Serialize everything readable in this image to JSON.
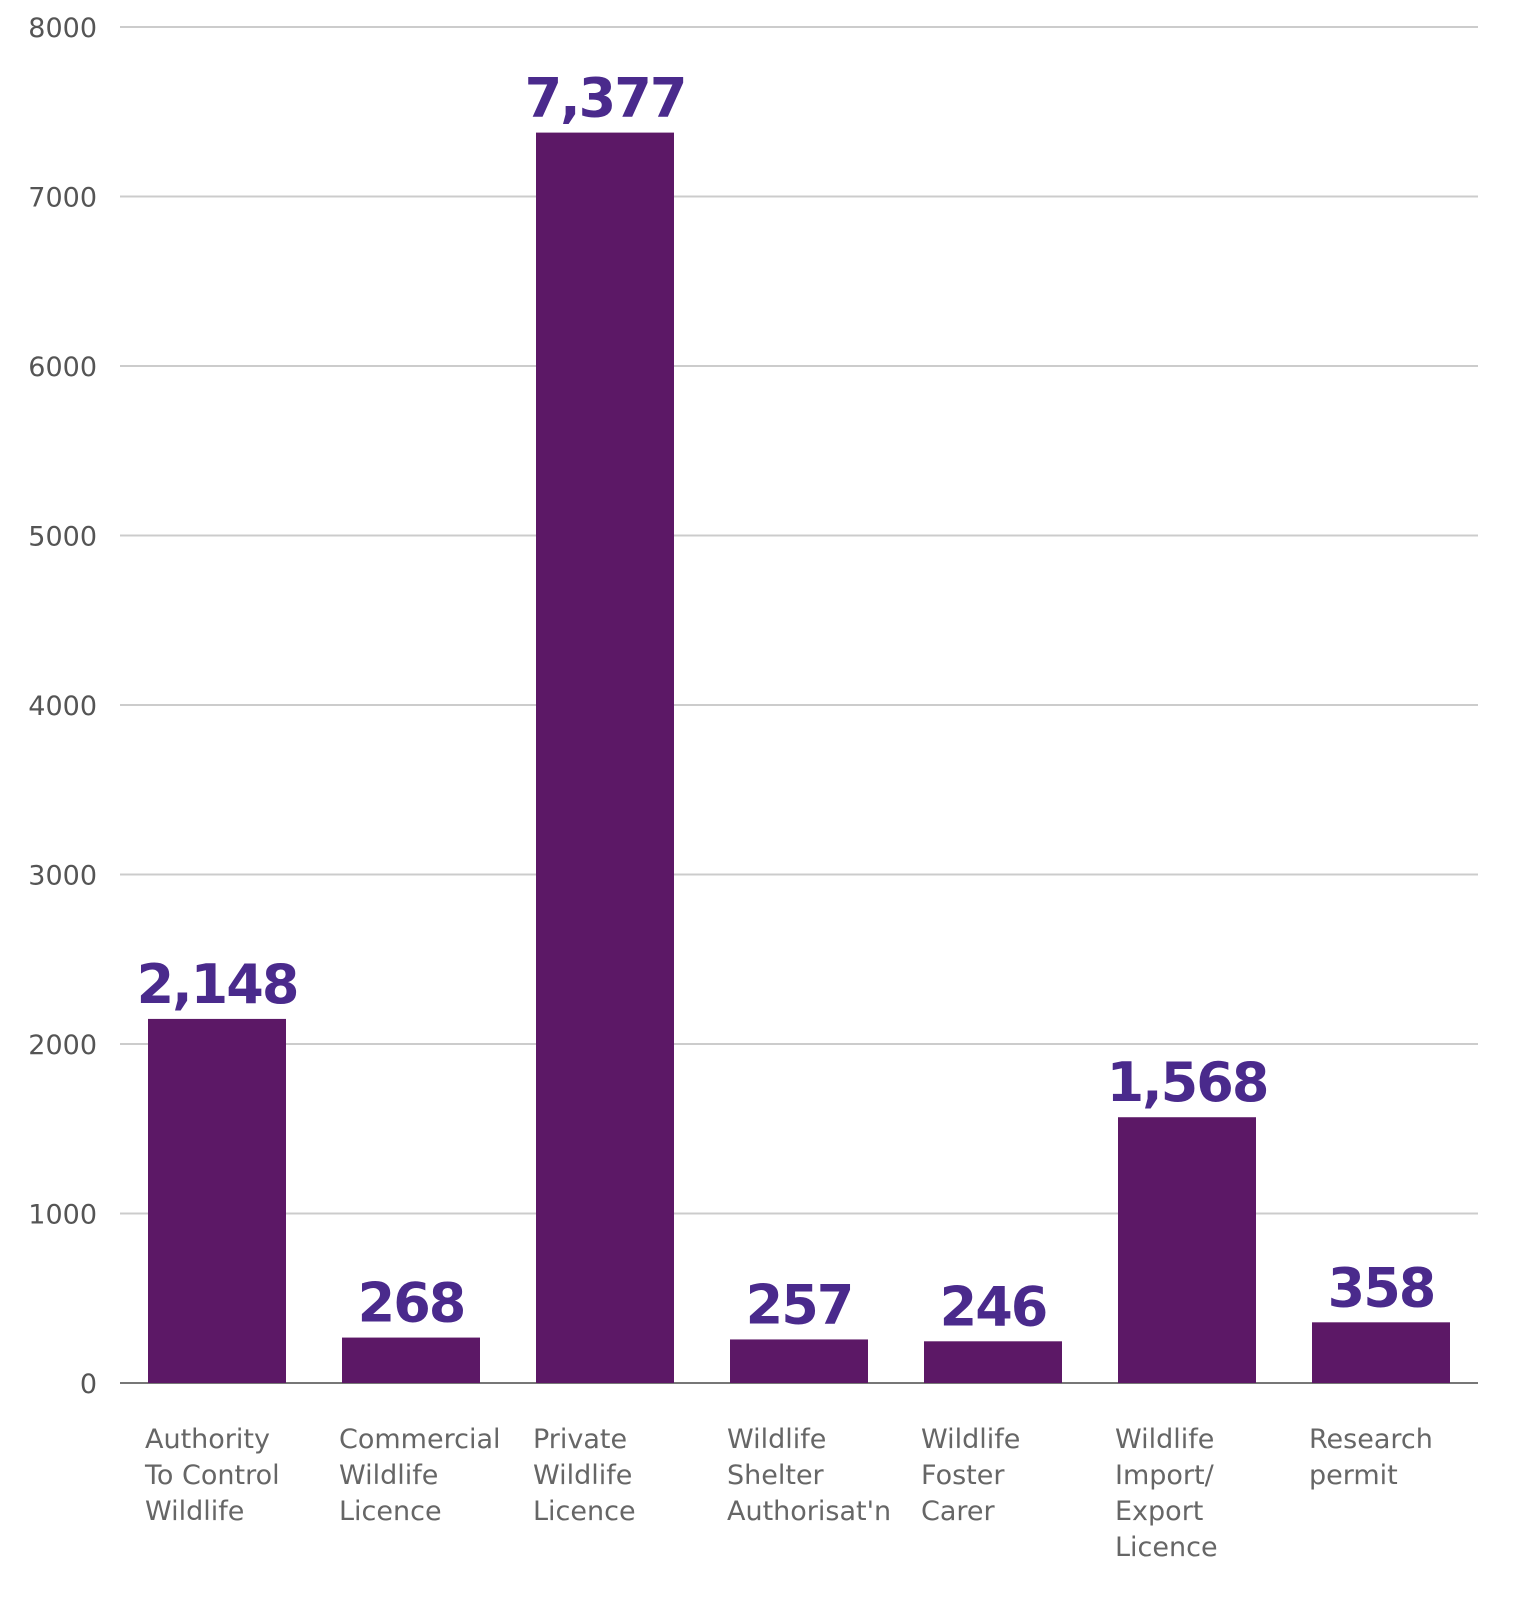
{
  "chart_data": {
    "type": "bar",
    "categories": [
      [
        "Authority",
        "To Control",
        "Wildlife"
      ],
      [
        "Commercial",
        "Wildlife",
        "Licence"
      ],
      [
        "Private",
        "Wildlife",
        "Licence"
      ],
      [
        "Wildlife",
        "Shelter",
        "Authorisat'n"
      ],
      [
        "Wildlife",
        "Foster",
        "Carer"
      ],
      [
        "Wildlife",
        "Import/",
        "Export",
        "Licence"
      ],
      [
        "Research",
        "permit"
      ]
    ],
    "values": [
      2148,
      268,
      7377,
      257,
      246,
      1568,
      358
    ],
    "data_labels": [
      "2,148",
      "268",
      "7,377",
      "257",
      "246",
      "1,568",
      "358"
    ],
    "yticks": [
      "0",
      "1000",
      "2000",
      "3000",
      "4000",
      "5000",
      "6000",
      "7000",
      "8000"
    ],
    "ylim": [
      0,
      8000
    ],
    "grid": true,
    "title": "",
    "xlabel": "",
    "ylabel": "",
    "colors": {
      "bar": "#5c1866",
      "label": "#4a2a8c",
      "grid": "#cccccc"
    }
  }
}
